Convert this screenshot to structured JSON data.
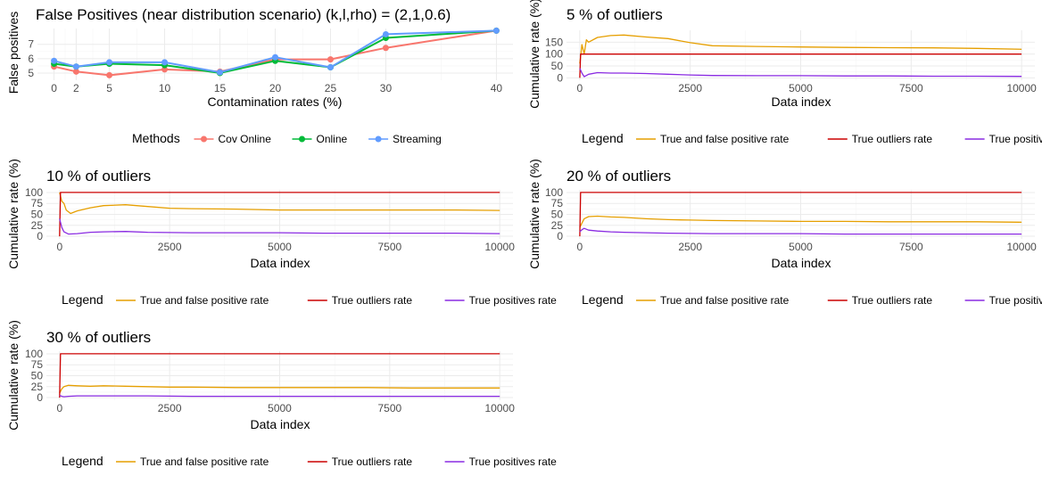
{
  "colors": {
    "cov_online": "#F8766D",
    "online": "#00BA38",
    "streaming": "#619CFF",
    "tfp": "#E69F00",
    "true_outliers": "#CC0000",
    "true_positives": "#8A2BE2",
    "grid_major": "#ebebeb",
    "grid_minor": "#f5f5f5",
    "text_dark": "#000000",
    "axis_text": "#4d4d4d"
  },
  "chart_data": [
    {
      "type": "line",
      "title": "False Positives (near distribution scenario) (k,l,rho) = (2,1,0.6)",
      "xlabel": "Contamination rates (%)",
      "ylabel": "False positives",
      "x": [
        0,
        2,
        5,
        10,
        15,
        20,
        25,
        30,
        40
      ],
      "x_ticks": [
        0,
        2,
        5,
        10,
        15,
        20,
        25,
        30,
        40
      ],
      "y_ticks": [
        5,
        6,
        7
      ],
      "xlim": [
        -1.5,
        41.5
      ],
      "ylim": [
        4.5,
        8.1
      ],
      "grid": true,
      "legend": {
        "title": "Methods",
        "position": "bottom",
        "items": [
          "Cov Online",
          "Online",
          "Streaming"
        ]
      },
      "series": [
        {
          "name": "Cov Online",
          "values": [
            5.45,
            5.1,
            4.85,
            5.25,
            5.1,
            5.95,
            5.95,
            6.75,
            7.95
          ]
        },
        {
          "name": "Online",
          "values": [
            5.65,
            5.45,
            5.65,
            5.55,
            5.0,
            5.85,
            5.4,
            7.45,
            7.95
          ]
        },
        {
          "name": "Streaming",
          "values": [
            5.85,
            5.45,
            5.75,
            5.75,
            5.05,
            6.1,
            5.4,
            7.7,
            7.95
          ]
        }
      ]
    },
    {
      "type": "line",
      "title": "5 % of outliers",
      "xlabel": "Data index",
      "ylabel": "Cumulative rate (%)",
      "x_ticks": [
        0,
        2500,
        5000,
        7500,
        10000
      ],
      "y_ticks": [
        0,
        50,
        100,
        150
      ],
      "xlim": [
        -300,
        10300
      ],
      "ylim": [
        -10,
        200
      ],
      "grid": true,
      "legend": {
        "title": "Legend",
        "position": "bottom",
        "items": [
          "True and false positive rate",
          "True outliers rate",
          "True positives rate"
        ]
      },
      "series": [
        {
          "name": "True and false positive rate",
          "x": [
            0,
            50,
            100,
            150,
            200,
            400,
            700,
            1000,
            1500,
            2000,
            2500,
            3000,
            4000,
            5000,
            6000,
            7000,
            8000,
            9000,
            10000
          ],
          "values": [
            60,
            140,
            100,
            160,
            150,
            170,
            178,
            180,
            172,
            165,
            148,
            135,
            132,
            130,
            128,
            127,
            126,
            124,
            120
          ]
        },
        {
          "name": "True outliers rate",
          "x": [
            0,
            20,
            40,
            10000
          ],
          "values": [
            0,
            100,
            100,
            100
          ]
        },
        {
          "name": "True positives rate",
          "x": [
            0,
            50,
            100,
            150,
            200,
            400,
            700,
            1000,
            1500,
            2000,
            2500,
            3000,
            4000,
            5000,
            6000,
            7000,
            8000,
            9000,
            10000
          ],
          "values": [
            40,
            20,
            5,
            10,
            15,
            22,
            20,
            20,
            18,
            15,
            12,
            10,
            9,
            9,
            8,
            8,
            7,
            7,
            6
          ]
        }
      ]
    },
    {
      "type": "line",
      "title": "10 % of outliers",
      "xlabel": "Data index",
      "ylabel": "Cumulative rate (%)",
      "x_ticks": [
        0,
        2500,
        5000,
        7500,
        10000
      ],
      "y_ticks": [
        0,
        25,
        50,
        75,
        100
      ],
      "xlim": [
        -300,
        10300
      ],
      "ylim": [
        -6,
        106
      ],
      "grid": true,
      "legend": {
        "title": "Legend",
        "position": "bottom",
        "items": [
          "True and false positive rate",
          "True outliers rate",
          "True positives rate"
        ]
      },
      "series": [
        {
          "name": "True and false positive rate",
          "x": [
            0,
            50,
            100,
            150,
            250,
            400,
            700,
            1000,
            1500,
            2000,
            2500,
            3000,
            4000,
            5000,
            6000,
            7000,
            8000,
            9000,
            10000
          ],
          "values": [
            100,
            80,
            75,
            60,
            52,
            58,
            65,
            70,
            72,
            68,
            64,
            63,
            62,
            60,
            60,
            60,
            60,
            60,
            59
          ]
        },
        {
          "name": "True outliers rate",
          "x": [
            0,
            20,
            40,
            10000
          ],
          "values": [
            0,
            100,
            100,
            100
          ]
        },
        {
          "name": "True positives rate",
          "x": [
            0,
            50,
            100,
            200,
            400,
            700,
            1000,
            1500,
            2000,
            3000,
            4000,
            5000,
            6000,
            7000,
            8000,
            9000,
            10000
          ],
          "values": [
            40,
            20,
            10,
            5,
            6,
            9,
            10,
            11,
            9,
            8,
            8,
            8,
            7,
            7,
            7,
            7,
            6
          ]
        }
      ]
    },
    {
      "type": "line",
      "title": "20 % of outliers",
      "xlabel": "Data index",
      "ylabel": "Cumulative rate (%)",
      "x_ticks": [
        0,
        2500,
        5000,
        7500,
        10000
      ],
      "y_ticks": [
        0,
        25,
        50,
        75,
        100
      ],
      "xlim": [
        -300,
        10300
      ],
      "ylim": [
        -6,
        106
      ],
      "grid": true,
      "legend": {
        "title": "Legend",
        "position": "bottom",
        "items": [
          "True and false positive rate",
          "True outliers rate",
          "True positives rate"
        ]
      },
      "series": [
        {
          "name": "True and false positive rate",
          "x": [
            0,
            50,
            100,
            200,
            400,
            700,
            1000,
            1500,
            2000,
            2500,
            3000,
            4000,
            5000,
            6000,
            7000,
            8000,
            9000,
            10000
          ],
          "values": [
            20,
            30,
            40,
            45,
            46,
            44,
            43,
            40,
            38,
            37,
            36,
            35,
            34,
            34,
            33,
            33,
            33,
            32
          ]
        },
        {
          "name": "True outliers rate",
          "x": [
            0,
            20,
            40,
            10000
          ],
          "values": [
            0,
            100,
            100,
            100
          ]
        },
        {
          "name": "True positives rate",
          "x": [
            0,
            50,
            100,
            200,
            400,
            700,
            1000,
            1500,
            2000,
            3000,
            4000,
            5000,
            6000,
            7000,
            8000,
            9000,
            10000
          ],
          "values": [
            10,
            15,
            18,
            14,
            12,
            10,
            9,
            8,
            7,
            6,
            6,
            6,
            5,
            5,
            5,
            5,
            5
          ]
        }
      ]
    },
    {
      "type": "line",
      "title": "30 % of outliers",
      "xlabel": "Data index",
      "ylabel": "Cumulative rate (%)",
      "x_ticks": [
        0,
        2500,
        5000,
        7500,
        10000
      ],
      "y_ticks": [
        0,
        25,
        50,
        75,
        100
      ],
      "xlim": [
        -300,
        10300
      ],
      "ylim": [
        -6,
        106
      ],
      "grid": true,
      "legend": {
        "title": "Legend",
        "position": "bottom",
        "items": [
          "True and false positive rate",
          "True outliers rate",
          "True positives rate"
        ]
      },
      "series": [
        {
          "name": "True and false positive rate",
          "x": [
            0,
            50,
            100,
            200,
            400,
            700,
            1000,
            1500,
            2000,
            2500,
            3000,
            4000,
            5000,
            6000,
            7000,
            8000,
            9000,
            10000
          ],
          "values": [
            10,
            20,
            25,
            28,
            27,
            26,
            27,
            26,
            25,
            24,
            24,
            23,
            23,
            23,
            23,
            22,
            22,
            22
          ]
        },
        {
          "name": "True outliers rate",
          "x": [
            0,
            20,
            40,
            10000
          ],
          "values": [
            0,
            100,
            100,
            100
          ]
        },
        {
          "name": "True positives rate",
          "x": [
            0,
            50,
            100,
            200,
            400,
            700,
            1000,
            1500,
            2000,
            3000,
            4000,
            5000,
            6000,
            7000,
            8000,
            9000,
            10000
          ],
          "values": [
            5,
            3,
            2,
            3,
            4,
            4,
            4,
            4,
            4,
            3,
            3,
            3,
            3,
            3,
            3,
            3,
            3
          ]
        }
      ]
    }
  ]
}
